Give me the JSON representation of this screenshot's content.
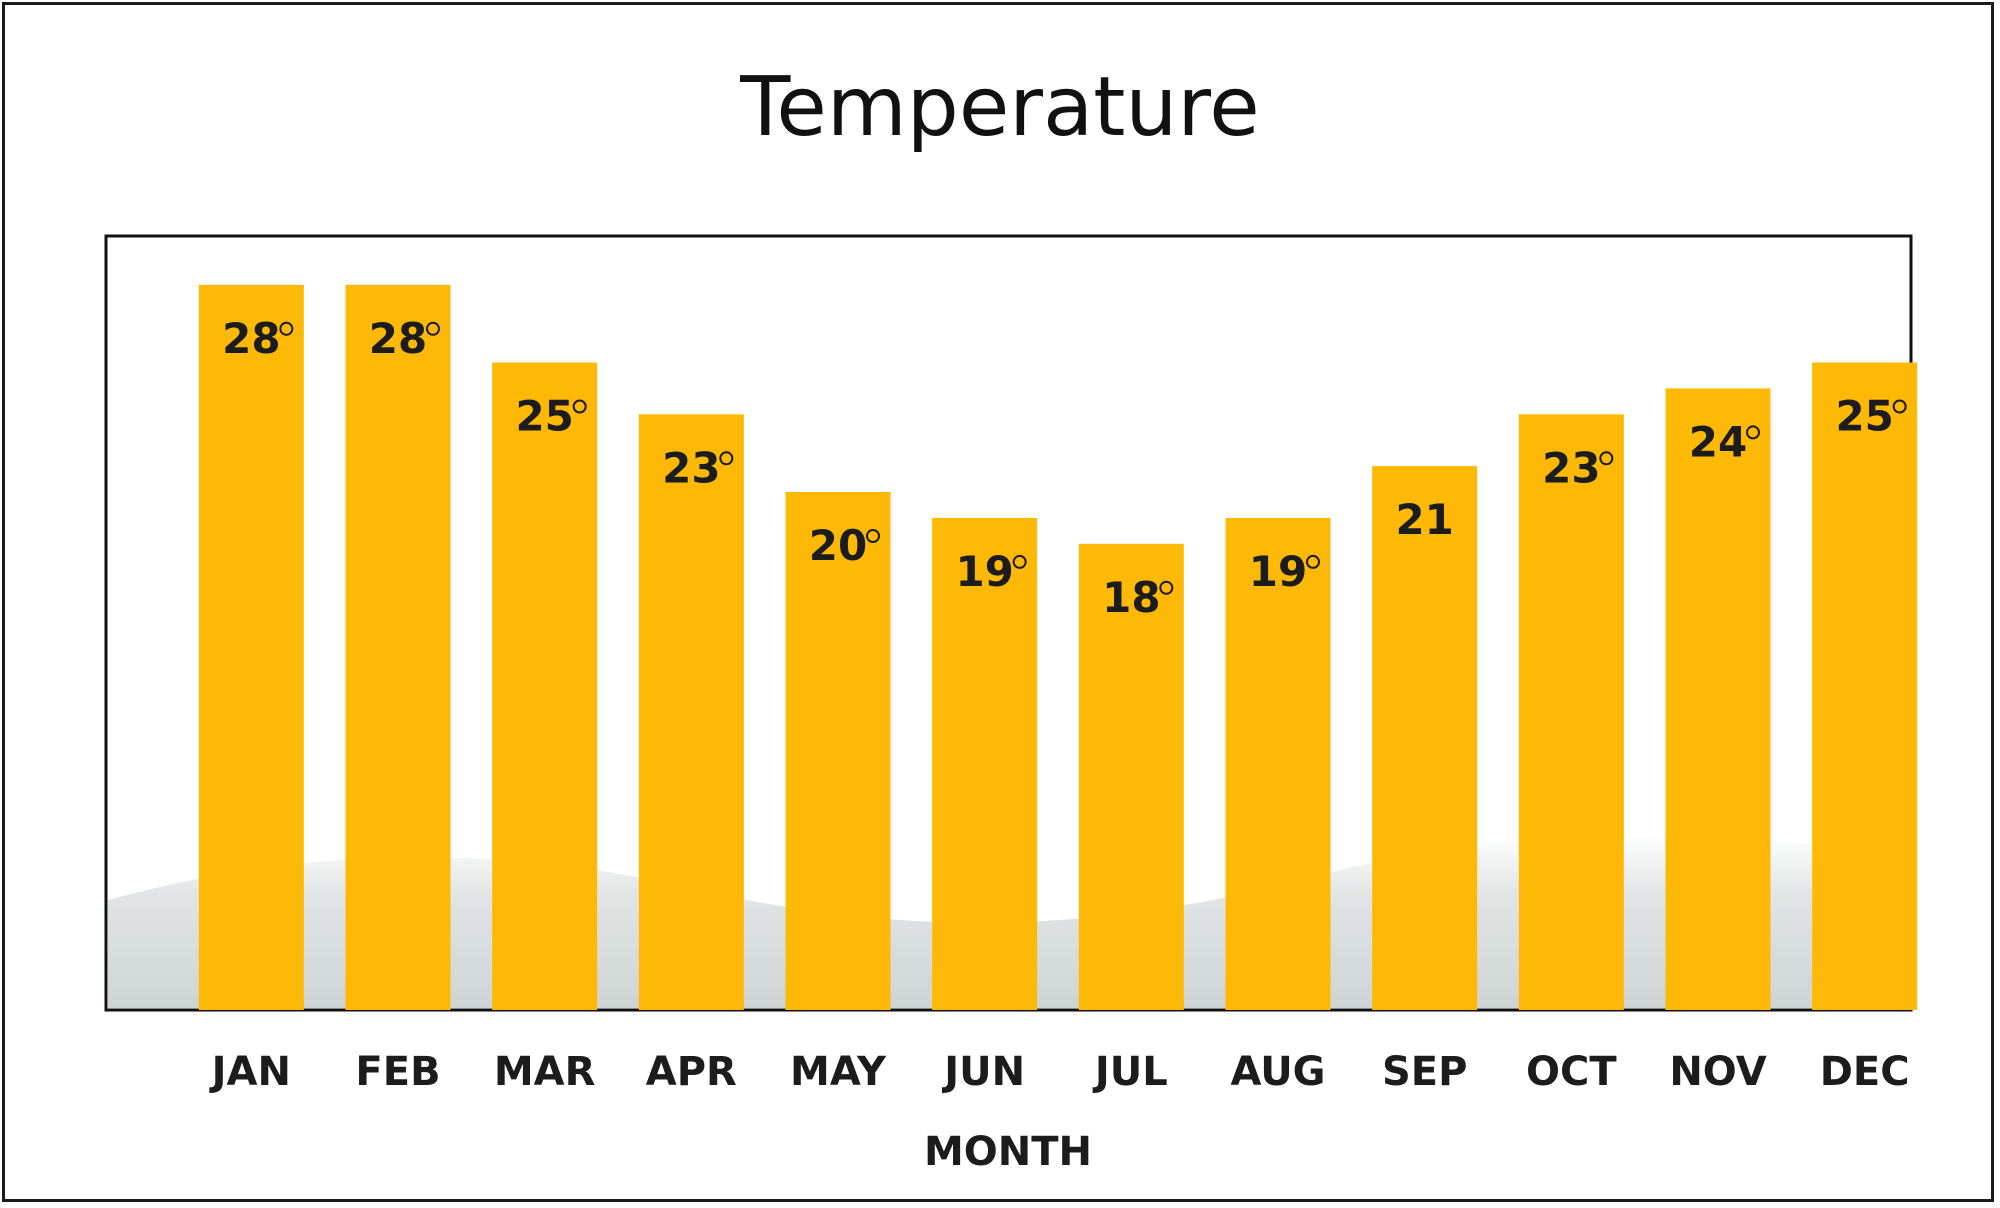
{
  "chart_data": {
    "type": "bar",
    "title": "Temperature",
    "xlabel": "MONTH",
    "ylabel": "",
    "categories": [
      "JAN",
      "FEB",
      "MAR",
      "APR",
      "MAY",
      "JUN",
      "JUL",
      "AUG",
      "SEP",
      "OCT",
      "NOV",
      "DEC"
    ],
    "values": [
      28,
      28,
      25,
      23,
      20,
      19,
      18,
      19,
      21,
      23,
      24,
      25
    ],
    "data_labels": [
      "28",
      "28",
      "25",
      "23",
      "20",
      "19",
      "18",
      "19",
      "21",
      "23",
      "24",
      "25"
    ],
    "degree_symbol_shown": [
      true,
      true,
      true,
      true,
      true,
      true,
      true,
      true,
      false,
      true,
      true,
      true
    ],
    "ylim": [
      0,
      30
    ],
    "grid": false,
    "legend": "none",
    "bar_color": "#FDB905"
  }
}
